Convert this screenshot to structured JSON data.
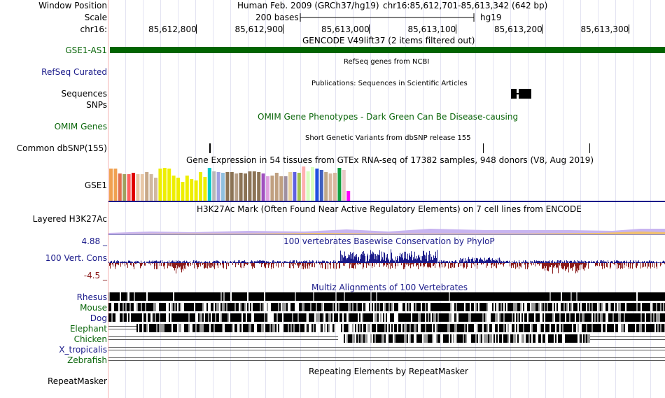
{
  "header": {
    "window_position_label": "Window Position",
    "assembly": "Human Feb. 2009 (GRCh37/hg19)",
    "position": "chr16:85,612,701-85,613,342 (642 bp)",
    "scale_label": "Scale",
    "scale_text": "200 bases",
    "db": "hg19",
    "chrom_label": "chr16:",
    "ruler": [
      {
        "label": "85,612,800",
        "pos": 85612800
      },
      {
        "label": "85,612,900",
        "pos": 85612900
      },
      {
        "label": "85,613,000",
        "pos": 85613000
      },
      {
        "label": "85,613,100",
        "pos": 85613100
      },
      {
        "label": "85,613,200",
        "pos": 85613200
      },
      {
        "label": "85,613,300",
        "pos": 85613300
      }
    ]
  },
  "tracks": {
    "gencode": {
      "title": "GENCODE V49lift37 (2 items filtered out)",
      "label": "GSE1-AS1",
      "color": "#006400"
    },
    "refseq": {
      "title": "RefSeq genes from NCBI",
      "label": "RefSeq Curated"
    },
    "publications": {
      "title": "Publications: Sequences in Scientific Articles",
      "label1": "Sequences",
      "label2": "SNPs"
    },
    "omim": {
      "title": "OMIM Gene Phenotypes - Dark Green Can Be Disease-causing",
      "label": "OMIM Genes"
    },
    "dbsnp": {
      "title": "Short Genetic Variants from dbSNP release 155",
      "label": "Common dbSNP(155)"
    },
    "gtex": {
      "title": "Gene Expression in 54 tissues from GTEx RNA-seq of 17382 samples, 948 donors (V8, Aug 2019)",
      "label": "GSE1",
      "bars": [
        {
          "value": 0.92,
          "color": "#f0a050"
        },
        {
          "value": 0.92,
          "color": "#f0a050"
        },
        {
          "value": 0.78,
          "color": "#e07050"
        },
        {
          "value": 0.76,
          "color": "#a0a060"
        },
        {
          "value": 0.76,
          "color": "#ff6060"
        },
        {
          "value": 0.8,
          "color": "#e00000"
        },
        {
          "value": 0.76,
          "color": "#e8c8a8"
        },
        {
          "value": 0.76,
          "color": "#e8c8a8"
        },
        {
          "value": 0.82,
          "color": "#c8a888"
        },
        {
          "value": 0.76,
          "color": "#d0b8a0"
        },
        {
          "value": 0.66,
          "color": "#d0b8a0"
        },
        {
          "value": 0.92,
          "color": "#eeee00"
        },
        {
          "value": 0.94,
          "color": "#eeee00"
        },
        {
          "value": 0.92,
          "color": "#eeee00"
        },
        {
          "value": 0.72,
          "color": "#eeee00"
        },
        {
          "value": 0.66,
          "color": "#eeee00"
        },
        {
          "value": 0.54,
          "color": "#eeee00"
        },
        {
          "value": 0.72,
          "color": "#eeee00"
        },
        {
          "value": 0.62,
          "color": "#eeee00"
        },
        {
          "value": 0.58,
          "color": "#eeee00"
        },
        {
          "value": 0.82,
          "color": "#eeee00"
        },
        {
          "value": 0.68,
          "color": "#eeee00"
        },
        {
          "value": 0.94,
          "color": "#00c8c8"
        },
        {
          "value": 0.84,
          "color": "#b8b8b8"
        },
        {
          "value": 0.82,
          "color": "#a0a0e0"
        },
        {
          "value": 0.8,
          "color": "#90c0e0"
        },
        {
          "value": 0.82,
          "color": "#8b7355"
        },
        {
          "value": 0.82,
          "color": "#8b7355"
        },
        {
          "value": 0.78,
          "color": "#b8a088"
        },
        {
          "value": 0.8,
          "color": "#8b7355"
        },
        {
          "value": 0.78,
          "color": "#8b7355"
        },
        {
          "value": 0.84,
          "color": "#8b7355"
        },
        {
          "value": 0.84,
          "color": "#8b7355"
        },
        {
          "value": 0.82,
          "color": "#8b7355"
        },
        {
          "value": 0.78,
          "color": "#a050c0"
        },
        {
          "value": 0.7,
          "color": "#e0a0e0"
        },
        {
          "value": 0.72,
          "color": "#c0a080"
        },
        {
          "value": 0.8,
          "color": "#c0a080"
        },
        {
          "value": 0.7,
          "color": "#c0a080"
        },
        {
          "value": 0.7,
          "color": "#a090a0"
        },
        {
          "value": 0.82,
          "color": "#e8d0a0"
        },
        {
          "value": 0.82,
          "color": "#6060e0"
        },
        {
          "value": 0.8,
          "color": "#a0c050"
        },
        {
          "value": 0.98,
          "color": "#ffb0b0"
        },
        {
          "value": 0.84,
          "color": "#d8ffc0"
        },
        {
          "value": 0.96,
          "color": "#d8ffc0"
        },
        {
          "value": 0.92,
          "color": "#2050e0"
        },
        {
          "value": 0.88,
          "color": "#4060c0"
        },
        {
          "value": 0.82,
          "color": "#c0a888"
        },
        {
          "value": 0.78,
          "color": "#d8b8a0"
        },
        {
          "value": 0.8,
          "color": "#d8b8a0"
        },
        {
          "value": 0.94,
          "color": "#10a040"
        },
        {
          "value": 0.88,
          "color": "#e8c8c8"
        },
        {
          "value": 0.28,
          "color": "#ff00ff"
        }
      ]
    },
    "h3k27ac": {
      "title": "H3K27Ac Mark (Often Found Near Active Regulatory Elements) on 7 cell lines from ENCODE",
      "label": "Layered H3K27Ac"
    },
    "phylop": {
      "title": "100 vertebrates Basewise Conservation by PhyloP",
      "label": "100 Vert. Cons",
      "max": "4.88 _",
      "min": "-4.5 _",
      "pos_color": "#1a1a8a",
      "neg_color": "#8a1a1a"
    },
    "multiz": {
      "title": "Multiz Alignments of 100 Vertebrates",
      "species": [
        {
          "name": "Rhesus",
          "color": "#1a1a8a"
        },
        {
          "name": "Mouse",
          "color": "#0a660a"
        },
        {
          "name": "Dog",
          "color": "#1a1a8a"
        },
        {
          "name": "Elephant",
          "color": "#0a660a"
        },
        {
          "name": "Chicken",
          "color": "#0a660a"
        },
        {
          "name": "X_tropicalis",
          "color": "#1a1a8a"
        },
        {
          "name": "Zebrafish",
          "color": "#0a660a"
        }
      ]
    },
    "repeatmasker": {
      "title": "Repeating Elements by RepeatMasker",
      "label": "RepeatMasker"
    }
  }
}
